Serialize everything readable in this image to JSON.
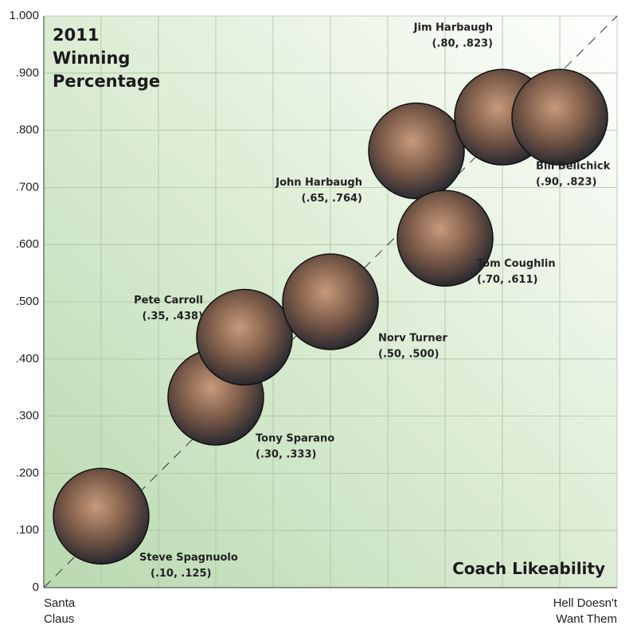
{
  "chart_data": {
    "type": "scatter",
    "title": "2011 Winning Percentage",
    "x_label": "Coach Likeability",
    "x_min_label": "Santa Claus",
    "x_max_label": "Hell Doesn't Want Them",
    "point_names": [
      "Steve Spagnuolo",
      "Tony Sparano",
      "Pete Carroll",
      "Norv Turner",
      "John Harbaugh",
      "Tom Coughlin",
      "Jim Harbaugh",
      "Bill Belichick"
    ],
    "x": [
      0.1,
      0.3,
      0.35,
      0.5,
      0.65,
      0.7,
      0.8,
      0.9
    ],
    "values": [
      0.125,
      0.333,
      0.438,
      0.5,
      0.764,
      0.611,
      0.823,
      0.823
    ],
    "value_labels": [
      "(.10, .125)",
      "(.30, .333)",
      "(.35, .438)",
      "(.50, .500)",
      "(.65, .764)",
      "(.70, .611)",
      "(.80, .823)",
      "(.90, .823)"
    ],
    "xlim": [
      0,
      1
    ],
    "xticks": [
      0,
      0.1,
      0.2,
      0.3,
      0.4,
      0.5,
      0.6,
      0.7,
      0.8,
      0.9,
      1
    ],
    "ylim": [
      0,
      1
    ],
    "yticks": [
      0,
      {
        "value": 0.1,
        "label": ".100"
      },
      {
        "value": 0.2,
        "label": ".200"
      },
      {
        "value": 0.3,
        "label": ".300"
      },
      {
        "value": 0.4,
        "label": ".400"
      },
      {
        "value": 0.5,
        "label": ".500"
      },
      {
        "value": 0.6,
        "label": ".600"
      },
      {
        "value": 0.7,
        "label": ".700"
      },
      {
        "value": 0.8,
        "label": ".800"
      },
      {
        "value": 0.9,
        "label": ".900"
      },
      {
        "value": 1,
        "label": "1.000"
      }
    ],
    "grid": true
  }
}
